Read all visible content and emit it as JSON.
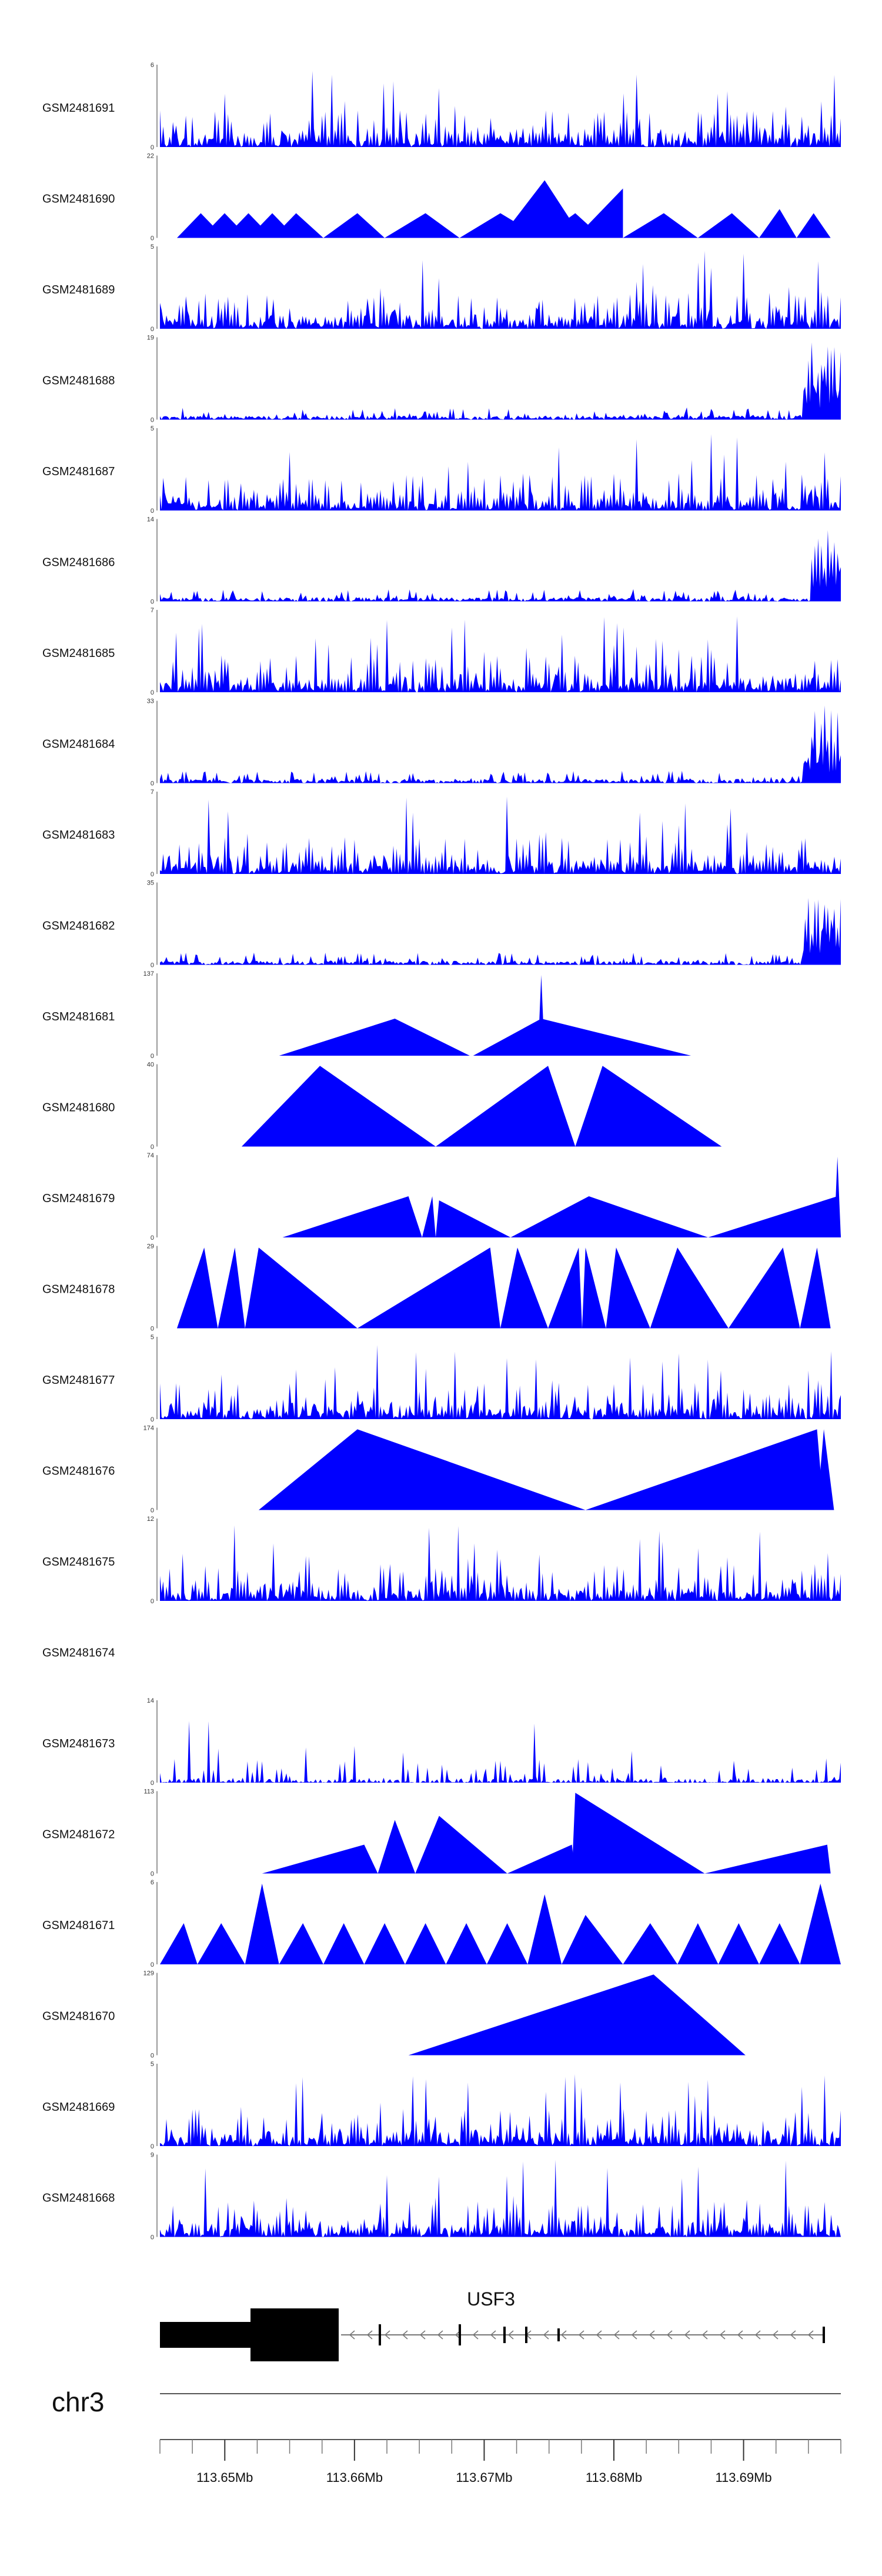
{
  "chart_data": {
    "type": "area",
    "tracks": [
      {
        "name": "GSM2481691",
        "ymax": "6",
        "ymin": "0",
        "pattern": "dense",
        "hot": []
      },
      {
        "name": "GSM2481690",
        "ymax": "22",
        "ymin": "0",
        "pattern": "tri",
        "hot": [],
        "peaks": [
          [
            0.025,
            0.06,
            0.095,
            0.3
          ],
          [
            0.06,
            0.095,
            0.13,
            0.3
          ],
          [
            0.095,
            0.13,
            0.165,
            0.3
          ],
          [
            0.13,
            0.165,
            0.2,
            0.3
          ],
          [
            0.165,
            0.2,
            0.24,
            0.3
          ],
          [
            0.24,
            0.29,
            0.33,
            0.3
          ],
          [
            0.33,
            0.39,
            0.44,
            0.3
          ],
          [
            0.44,
            0.5,
            0.56,
            0.3
          ],
          [
            0.5,
            0.565,
            0.62,
            0.7
          ],
          [
            0.56,
            0.61,
            0.65,
            0.3
          ],
          [
            0.61,
            0.68,
            0.68,
            0.6
          ],
          [
            0.68,
            0.74,
            0.79,
            0.3
          ],
          [
            0.79,
            0.84,
            0.88,
            0.3
          ],
          [
            0.88,
            0.91,
            0.935,
            0.35
          ],
          [
            0.935,
            0.96,
            0.985,
            0.3
          ]
        ]
      },
      {
        "name": "GSM2481689",
        "ymax": "5",
        "ymin": "0",
        "pattern": "dense",
        "hot": []
      },
      {
        "name": "GSM2481688",
        "ymax": "19",
        "ymin": "0",
        "pattern": "lowhot",
        "hot": [
          0.945,
          1.0
        ]
      },
      {
        "name": "GSM2481687",
        "ymax": "5",
        "ymin": "0",
        "pattern": "dense",
        "hot": []
      },
      {
        "name": "GSM2481686",
        "ymax": "14",
        "ymin": "0",
        "pattern": "lowhot",
        "hot": [
          0.955,
          1.0
        ]
      },
      {
        "name": "GSM2481685",
        "ymax": "7",
        "ymin": "0",
        "pattern": "dense",
        "hot": []
      },
      {
        "name": "GSM2481684",
        "ymax": "33",
        "ymin": "0",
        "pattern": "lowhot",
        "hot": [
          0.945,
          1.0
        ]
      },
      {
        "name": "GSM2481683",
        "ymax": "7",
        "ymin": "0",
        "pattern": "dense",
        "hot": []
      },
      {
        "name": "GSM2481682",
        "ymax": "35",
        "ymin": "0",
        "pattern": "lowhot",
        "hot": [
          0.945,
          1.0
        ]
      },
      {
        "name": "GSM2481681",
        "ymax": "137",
        "ymin": "0",
        "pattern": "tri",
        "hot": [],
        "peaks": [
          [
            0.175,
            0.345,
            0.455,
            0.45
          ],
          [
            0.46,
            0.56,
            0.78,
            0.45
          ],
          [
            0.555,
            0.56,
            0.565,
            0.98
          ]
        ]
      },
      {
        "name": "GSM2481680",
        "ymax": "40",
        "ymin": "0",
        "pattern": "tri",
        "hot": [],
        "peaks": [
          [
            0.12,
            0.235,
            0.405,
            0.98
          ],
          [
            0.405,
            0.57,
            0.61,
            0.98
          ],
          [
            0.61,
            0.65,
            0.825,
            0.98
          ]
        ]
      },
      {
        "name": "GSM2481679",
        "ymax": "74",
        "ymin": "0",
        "pattern": "tri",
        "hot": [],
        "peaks": [
          [
            0.18,
            0.365,
            0.385,
            0.5
          ],
          [
            0.385,
            0.4,
            0.405,
            0.5
          ],
          [
            0.405,
            0.41,
            0.515,
            0.45
          ],
          [
            0.515,
            0.63,
            0.805,
            0.5
          ],
          [
            0.805,
            0.995,
            1.0,
            0.5
          ],
          [
            0.99,
            0.995,
            1.0,
            0.98
          ]
        ]
      },
      {
        "name": "GSM2481678",
        "ymax": "29",
        "ymin": "0",
        "pattern": "tri",
        "hot": [],
        "peaks": [
          [
            0.025,
            0.065,
            0.085,
            0.98
          ],
          [
            0.085,
            0.11,
            0.125,
            0.98
          ],
          [
            0.125,
            0.145,
            0.29,
            0.98
          ],
          [
            0.29,
            0.485,
            0.5,
            0.98
          ],
          [
            0.5,
            0.525,
            0.57,
            0.98
          ],
          [
            0.57,
            0.615,
            0.62,
            0.98
          ],
          [
            0.62,
            0.625,
            0.655,
            0.98
          ],
          [
            0.655,
            0.67,
            0.72,
            0.98
          ],
          [
            0.72,
            0.76,
            0.835,
            0.98
          ],
          [
            0.835,
            0.915,
            0.94,
            0.98
          ],
          [
            0.94,
            0.965,
            0.985,
            0.98
          ]
        ]
      },
      {
        "name": "GSM2481677",
        "ymax": "5",
        "ymin": "0",
        "pattern": "dense",
        "hot": []
      },
      {
        "name": "GSM2481676",
        "ymax": "174",
        "ymin": "0",
        "pattern": "tri",
        "hot": [],
        "peaks": [
          [
            0.145,
            0.29,
            0.625,
            0.98
          ],
          [
            0.625,
            0.965,
            0.975,
            0.98
          ],
          [
            0.965,
            0.975,
            0.99,
            0.98
          ]
        ]
      },
      {
        "name": "GSM2481675",
        "ymax": "12",
        "ymin": "0",
        "pattern": "dense",
        "hot": []
      },
      {
        "name": "GSM2481674",
        "ymax": "",
        "ymin": "",
        "pattern": "empty",
        "hot": []
      },
      {
        "name": "GSM2481673",
        "ymax": "14",
        "ymin": "0",
        "pattern": "sparse",
        "hot": []
      },
      {
        "name": "GSM2481672",
        "ymax": "113",
        "ymin": "0",
        "pattern": "tri",
        "hot": [],
        "peaks": [
          [
            0.15,
            0.3,
            0.32,
            0.35
          ],
          [
            0.32,
            0.345,
            0.375,
            0.65
          ],
          [
            0.375,
            0.41,
            0.51,
            0.7
          ],
          [
            0.51,
            0.605,
            0.61,
            0.35
          ],
          [
            0.605,
            0.61,
            0.8,
            0.98
          ],
          [
            0.8,
            0.98,
            0.985,
            0.35
          ]
        ]
      },
      {
        "name": "GSM2481671",
        "ymax": "6",
        "ymin": "0",
        "pattern": "tri",
        "hot": [],
        "peaks": [
          [
            0.0,
            0.035,
            0.055,
            0.5
          ],
          [
            0.055,
            0.09,
            0.125,
            0.5
          ],
          [
            0.125,
            0.15,
            0.175,
            0.98
          ],
          [
            0.175,
            0.21,
            0.24,
            0.5
          ],
          [
            0.24,
            0.27,
            0.3,
            0.5
          ],
          [
            0.3,
            0.33,
            0.36,
            0.5
          ],
          [
            0.36,
            0.39,
            0.42,
            0.5
          ],
          [
            0.42,
            0.45,
            0.48,
            0.5
          ],
          [
            0.48,
            0.51,
            0.54,
            0.5
          ],
          [
            0.54,
            0.565,
            0.59,
            0.85
          ],
          [
            0.59,
            0.625,
            0.68,
            0.6
          ],
          [
            0.68,
            0.72,
            0.76,
            0.5
          ],
          [
            0.76,
            0.79,
            0.82,
            0.5
          ],
          [
            0.82,
            0.85,
            0.88,
            0.5
          ],
          [
            0.88,
            0.91,
            0.94,
            0.5
          ],
          [
            0.94,
            0.97,
            1.0,
            0.98
          ]
        ]
      },
      {
        "name": "GSM2481670",
        "ymax": "129",
        "ymin": "0",
        "pattern": "tri",
        "hot": [],
        "peaks": [
          [
            0.365,
            0.725,
            0.86,
            0.98
          ]
        ]
      },
      {
        "name": "GSM2481669",
        "ymax": "5",
        "ymin": "0",
        "pattern": "dense",
        "hot": []
      },
      {
        "name": "GSM2481668",
        "ymax": "9",
        "ymin": "0",
        "pattern": "dense",
        "hot": []
      }
    ],
    "gene": {
      "name": "USF3"
    },
    "chromosome": "chr3",
    "axis": {
      "xlim": [
        113.645,
        113.6975
      ],
      "ticks": [
        "113.65Mb",
        "113.66Mb",
        "113.67Mb",
        "113.68Mb",
        "113.69Mb"
      ],
      "tick_values": [
        113.65,
        113.66,
        113.67,
        113.68,
        113.69
      ]
    },
    "colors": {
      "fill": "#0000ff",
      "axis": "#555555",
      "gene": "#000000"
    },
    "grid": false,
    "legend": "none"
  }
}
